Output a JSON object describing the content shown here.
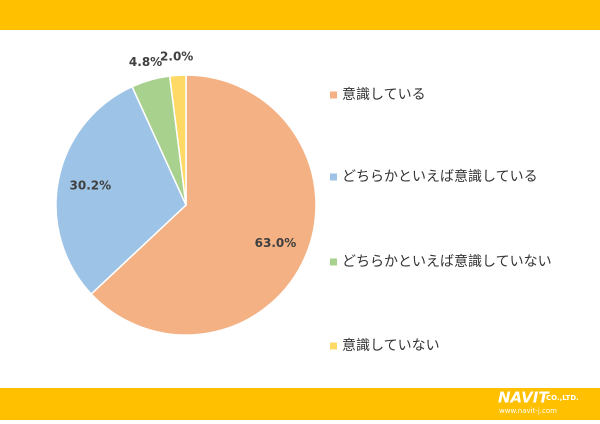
{
  "chart_data": {
    "type": "pie",
    "categories": [
      "意識している",
      "どちらかといえば意識している",
      "どちらかといえば意識していない",
      "意識していない"
    ],
    "values": [
      63.0,
      30.2,
      4.8,
      2.0
    ],
    "value_labels": [
      "63.0%",
      "30.2%",
      "4.8%",
      "2.0%"
    ],
    "colors": [
      "#f4b183",
      "#9dc3e6",
      "#a9d18e",
      "#ffd966"
    ],
    "legend": "right"
  },
  "logo": {
    "name": "NAVIT",
    "suffix": "CO.,LTD.",
    "url": "www.navit-j.com"
  }
}
